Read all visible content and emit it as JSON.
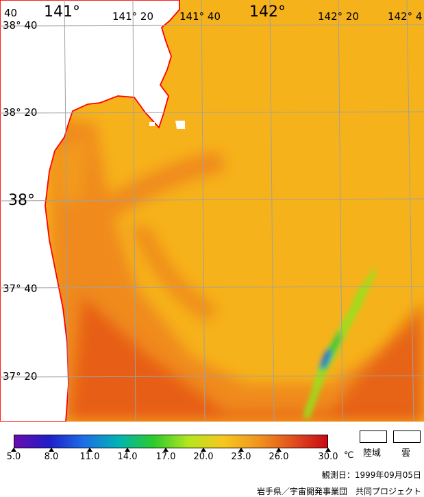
{
  "map": {
    "water_colors": {
      "base": "#F6B21B",
      "warm": "#F08A1A",
      "hot": "#E55A13",
      "cool_green": "#9ADE1E",
      "green": "#3CC23C",
      "blue": "#1E78D2",
      "coast": "#FF0000",
      "grid": "#A0A0A0"
    },
    "lon_labels": [
      {
        "deg": "141°",
        "min": "",
        "size": "large"
      },
      {
        "deg": "141°",
        "min": "20",
        "size": "small"
      },
      {
        "deg": "141°",
        "min": "40",
        "size": "small"
      },
      {
        "deg": "142°",
        "min": "",
        "size": "large"
      },
      {
        "deg": "142°",
        "min": "20",
        "size": "small"
      },
      {
        "deg": "142°",
        "min": "4",
        "size": "small"
      }
    ],
    "lat_labels": [
      {
        "deg": "38°",
        "min": "40",
        "size": "small"
      },
      {
        "deg": "38°",
        "min": "20",
        "size": "small"
      },
      {
        "deg": "38°",
        "min": "",
        "size": "large"
      },
      {
        "deg": "37°",
        "min": "40",
        "size": "small"
      },
      {
        "deg": "37°",
        "min": "20",
        "size": "small"
      }
    ],
    "corner_label": "40"
  },
  "colorbar": {
    "ticks": [
      "5.0",
      "8.0",
      "11.0",
      "14.0",
      "17.0",
      "20.0",
      "23.0",
      "26.0",
      "30.0"
    ],
    "unit": "℃",
    "gradient": [
      "#6A0DAD",
      "#1E1EC8",
      "#1E6EE6",
      "#00B4B4",
      "#2CCB2C",
      "#B4E61E",
      "#F6C81E",
      "#F0961E",
      "#E2501E",
      "#C80A14"
    ]
  },
  "legend": {
    "land": "陸域",
    "cloud": "雲"
  },
  "observation": "観測日：1999年09月05日",
  "credit": "岩手県／宇宙開発事業団　共同プロジェクト"
}
